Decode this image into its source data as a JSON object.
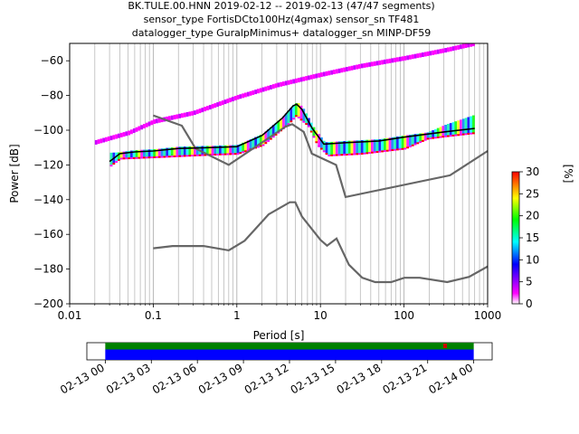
{
  "title_lines": [
    "BK.TULE.00.HNN   2019-02-12 -- 2019-02-13  (47/47 segments)",
    "sensor_type FortisDCto100Hz(4gmax) sensor_sn TF481",
    "datalogger_type GuralpMinimus+ datalogger_sn MINP-DF59"
  ],
  "chart_data": [
    {
      "type": "heatmap",
      "title": "BK.TULE.00.HNN   2019-02-12 -- 2019-02-13  (47/47 segments)",
      "xlabel": "Period [s]",
      "ylabel": "Power [dB]",
      "x_scale": "log",
      "xlim": [
        0.01,
        1000
      ],
      "ylim": [
        -200,
        -50
      ],
      "x_ticks": [
        0.01,
        0.1,
        1,
        10,
        100,
        1000
      ],
      "x_tick_labels": [
        "0.01",
        "0.1",
        "1",
        "10",
        "100",
        "1000"
      ],
      "y_ticks": [
        -200,
        -180,
        -160,
        -140,
        -120,
        -100,
        -80,
        -60
      ],
      "y_tick_labels": [
        "−200",
        "−180",
        "−160",
        "−140",
        "−120",
        "−100",
        "−80",
        "−60"
      ],
      "grid": "vertical",
      "colorbar": {
        "label": "[%]",
        "range": [
          0,
          30
        ],
        "ticks": [
          0,
          5,
          10,
          15,
          20,
          25,
          30
        ],
        "colors": [
          "#ffffff",
          "#ff00ff",
          "#0000ff",
          "#00ffff",
          "#00ff00",
          "#ffff00",
          "#ff0000"
        ]
      },
      "colors": {
        "mean": "#000000",
        "noise_model": "#666666",
        "high_power_band": "#ff00ff",
        "cluster_high": "#00cccc",
        "edge_low": "#ff0000"
      },
      "series": [
        {
          "kind": "noise_model_high",
          "x": [
            0.1,
            0.22,
            0.32,
            0.8,
            3.8,
            4.6,
            6.3,
            7.9,
            15.4,
            20,
            354.8,
            1000
          ],
          "y": [
            -91.5,
            -97.4,
            -110.5,
            -120,
            -98,
            -96.5,
            -101,
            -113.5,
            -120,
            -138.5,
            -126,
            -112
          ]
        },
        {
          "kind": "noise_model_low",
          "x": [
            0.1,
            0.17,
            0.4,
            0.8,
            1.24,
            2.4,
            4.3,
            5.0,
            6.0,
            10,
            12,
            15.6,
            21.9,
            31.6,
            45.2,
            70,
            101,
            154,
            328,
            600,
            1000
          ],
          "y": [
            -168,
            -166.7,
            -166.7,
            -169.2,
            -163.7,
            -148.5,
            -141.5,
            -141.5,
            -149.7,
            -163.2,
            -166.5,
            -162.4,
            -177.5,
            -185,
            -187.5,
            -187.5,
            -185,
            -185,
            -187.5,
            -184.5,
            -178.5
          ]
        },
        {
          "kind": "mean_psd",
          "x": [
            0.03,
            0.04,
            0.06,
            0.1,
            0.2,
            0.5,
            1.0,
            2.0,
            3.5,
            4.7,
            5.2,
            6.0,
            8.0,
            11.0,
            20.0,
            50.0,
            100.0,
            300.0,
            700.0
          ],
          "y": [
            -118,
            -113.5,
            -112.5,
            -112,
            -110.5,
            -110,
            -109.5,
            -103,
            -93,
            -86,
            -85,
            -88,
            -99,
            -108,
            -107.2,
            -106.2,
            -104,
            -101,
            -99
          ]
        },
        {
          "kind": "mode_band_high",
          "x": [
            0.02,
            0.05,
            0.1,
            0.3,
            1.0,
            3.0,
            10.0,
            30.0,
            100.0,
            300.0,
            700.0
          ],
          "y": [
            -107,
            -101.5,
            -95,
            -90,
            -81,
            -74,
            -68,
            -63,
            -58.5,
            -54,
            -50
          ]
        },
        {
          "kind": "probability_cluster",
          "x": [
            0.03,
            0.1,
            0.5,
            1.0,
            2.0,
            4.0,
            5.0,
            7.0,
            9.0,
            12.0,
            30.0,
            100.0,
            300.0,
            700.0
          ],
          "y": [
            -114,
            -113,
            -111.5,
            -111,
            -106,
            -94,
            -89,
            -95,
            -106,
            -112,
            -111,
            -108,
            -98,
            -92
          ]
        }
      ]
    },
    {
      "type": "bar",
      "xlabel": "",
      "ylabel": "",
      "x_tick_labels": [
        "02-13 00",
        "02-13 03",
        "02-13 06",
        "02-13 09",
        "02-13 12",
        "02-13 15",
        "02-13 18",
        "02-13 21",
        "02-14 00"
      ],
      "xlim_hours": [
        -1.2,
        25.2
      ],
      "colors": {
        "coverage": "#008000",
        "psd_used": "#0000ff",
        "gap": "#cc0000"
      },
      "series": [
        {
          "name": "coverage",
          "start_hour": 0,
          "end_hour": 24
        },
        {
          "name": "psd_used",
          "start_hour": 0,
          "end_hour": 24
        }
      ]
    }
  ]
}
